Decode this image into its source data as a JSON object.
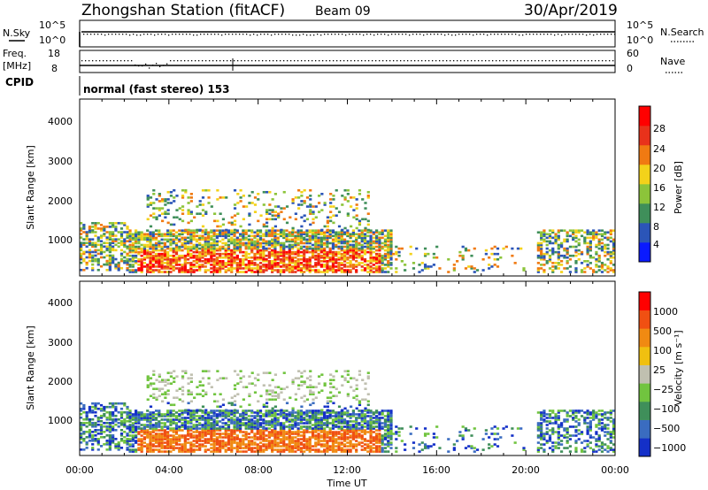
{
  "header": {
    "station": "Zhongshan Station (fitACF)",
    "beam": "Beam 09",
    "date": "30/Apr/2019"
  },
  "nsky_panel": {
    "left_label": "N.Sky",
    "right_label": "N.Search",
    "left_ticks": [
      "10^5",
      "10^0"
    ],
    "right_ticks": [
      "10^5",
      "10^0"
    ]
  },
  "freq_panel": {
    "left_label_1": "Freq.",
    "left_label_2": "[MHz]",
    "left_ticks": [
      "18",
      "8"
    ],
    "right_label": "Nave",
    "right_ticks": [
      "60",
      "0"
    ]
  },
  "cpid": {
    "label": "CPID",
    "mode": "normal (fast stereo) 153"
  },
  "chart_data": [
    {
      "type": "heatmap",
      "name": "power",
      "ylabel": "Slant Range [km]",
      "yticks": [
        "4000",
        "3000",
        "2000",
        "1000"
      ],
      "ylim": [
        180,
        4600
      ],
      "colorbar_label": "Power [dB]",
      "colorbar_ticks": [
        "28",
        "24",
        "20",
        "16",
        "12",
        "8",
        "4"
      ],
      "colors": [
        "#0a1aff",
        "#2b55b8",
        "#3f8f5a",
        "#8cc43a",
        "#f3d21a",
        "#f07a12",
        "#e8321b",
        "#ff0000"
      ]
    },
    {
      "type": "heatmap",
      "name": "velocity",
      "ylabel": "Slant Range [km]",
      "yticks": [
        "4000",
        "3000",
        "2000",
        "1000"
      ],
      "ylim": [
        180,
        4600
      ],
      "colorbar_label": "Velocity [m s⁻¹]",
      "colorbar_ticks": [
        "1000",
        "500",
        "100",
        "25",
        "−25",
        "−100",
        "−500",
        "−1000"
      ],
      "colors": [
        "#1430c8",
        "#3a6cc0",
        "#3f8f5a",
        "#71c43f",
        "#c0c0b0",
        "#f0c010",
        "#f08a12",
        "#f05012",
        "#ff0000"
      ]
    }
  ],
  "xaxis": {
    "ticks": [
      "00:00",
      "04:00",
      "08:00",
      "12:00",
      "16:00",
      "20:00",
      "00:00"
    ],
    "label": "Time UT"
  }
}
